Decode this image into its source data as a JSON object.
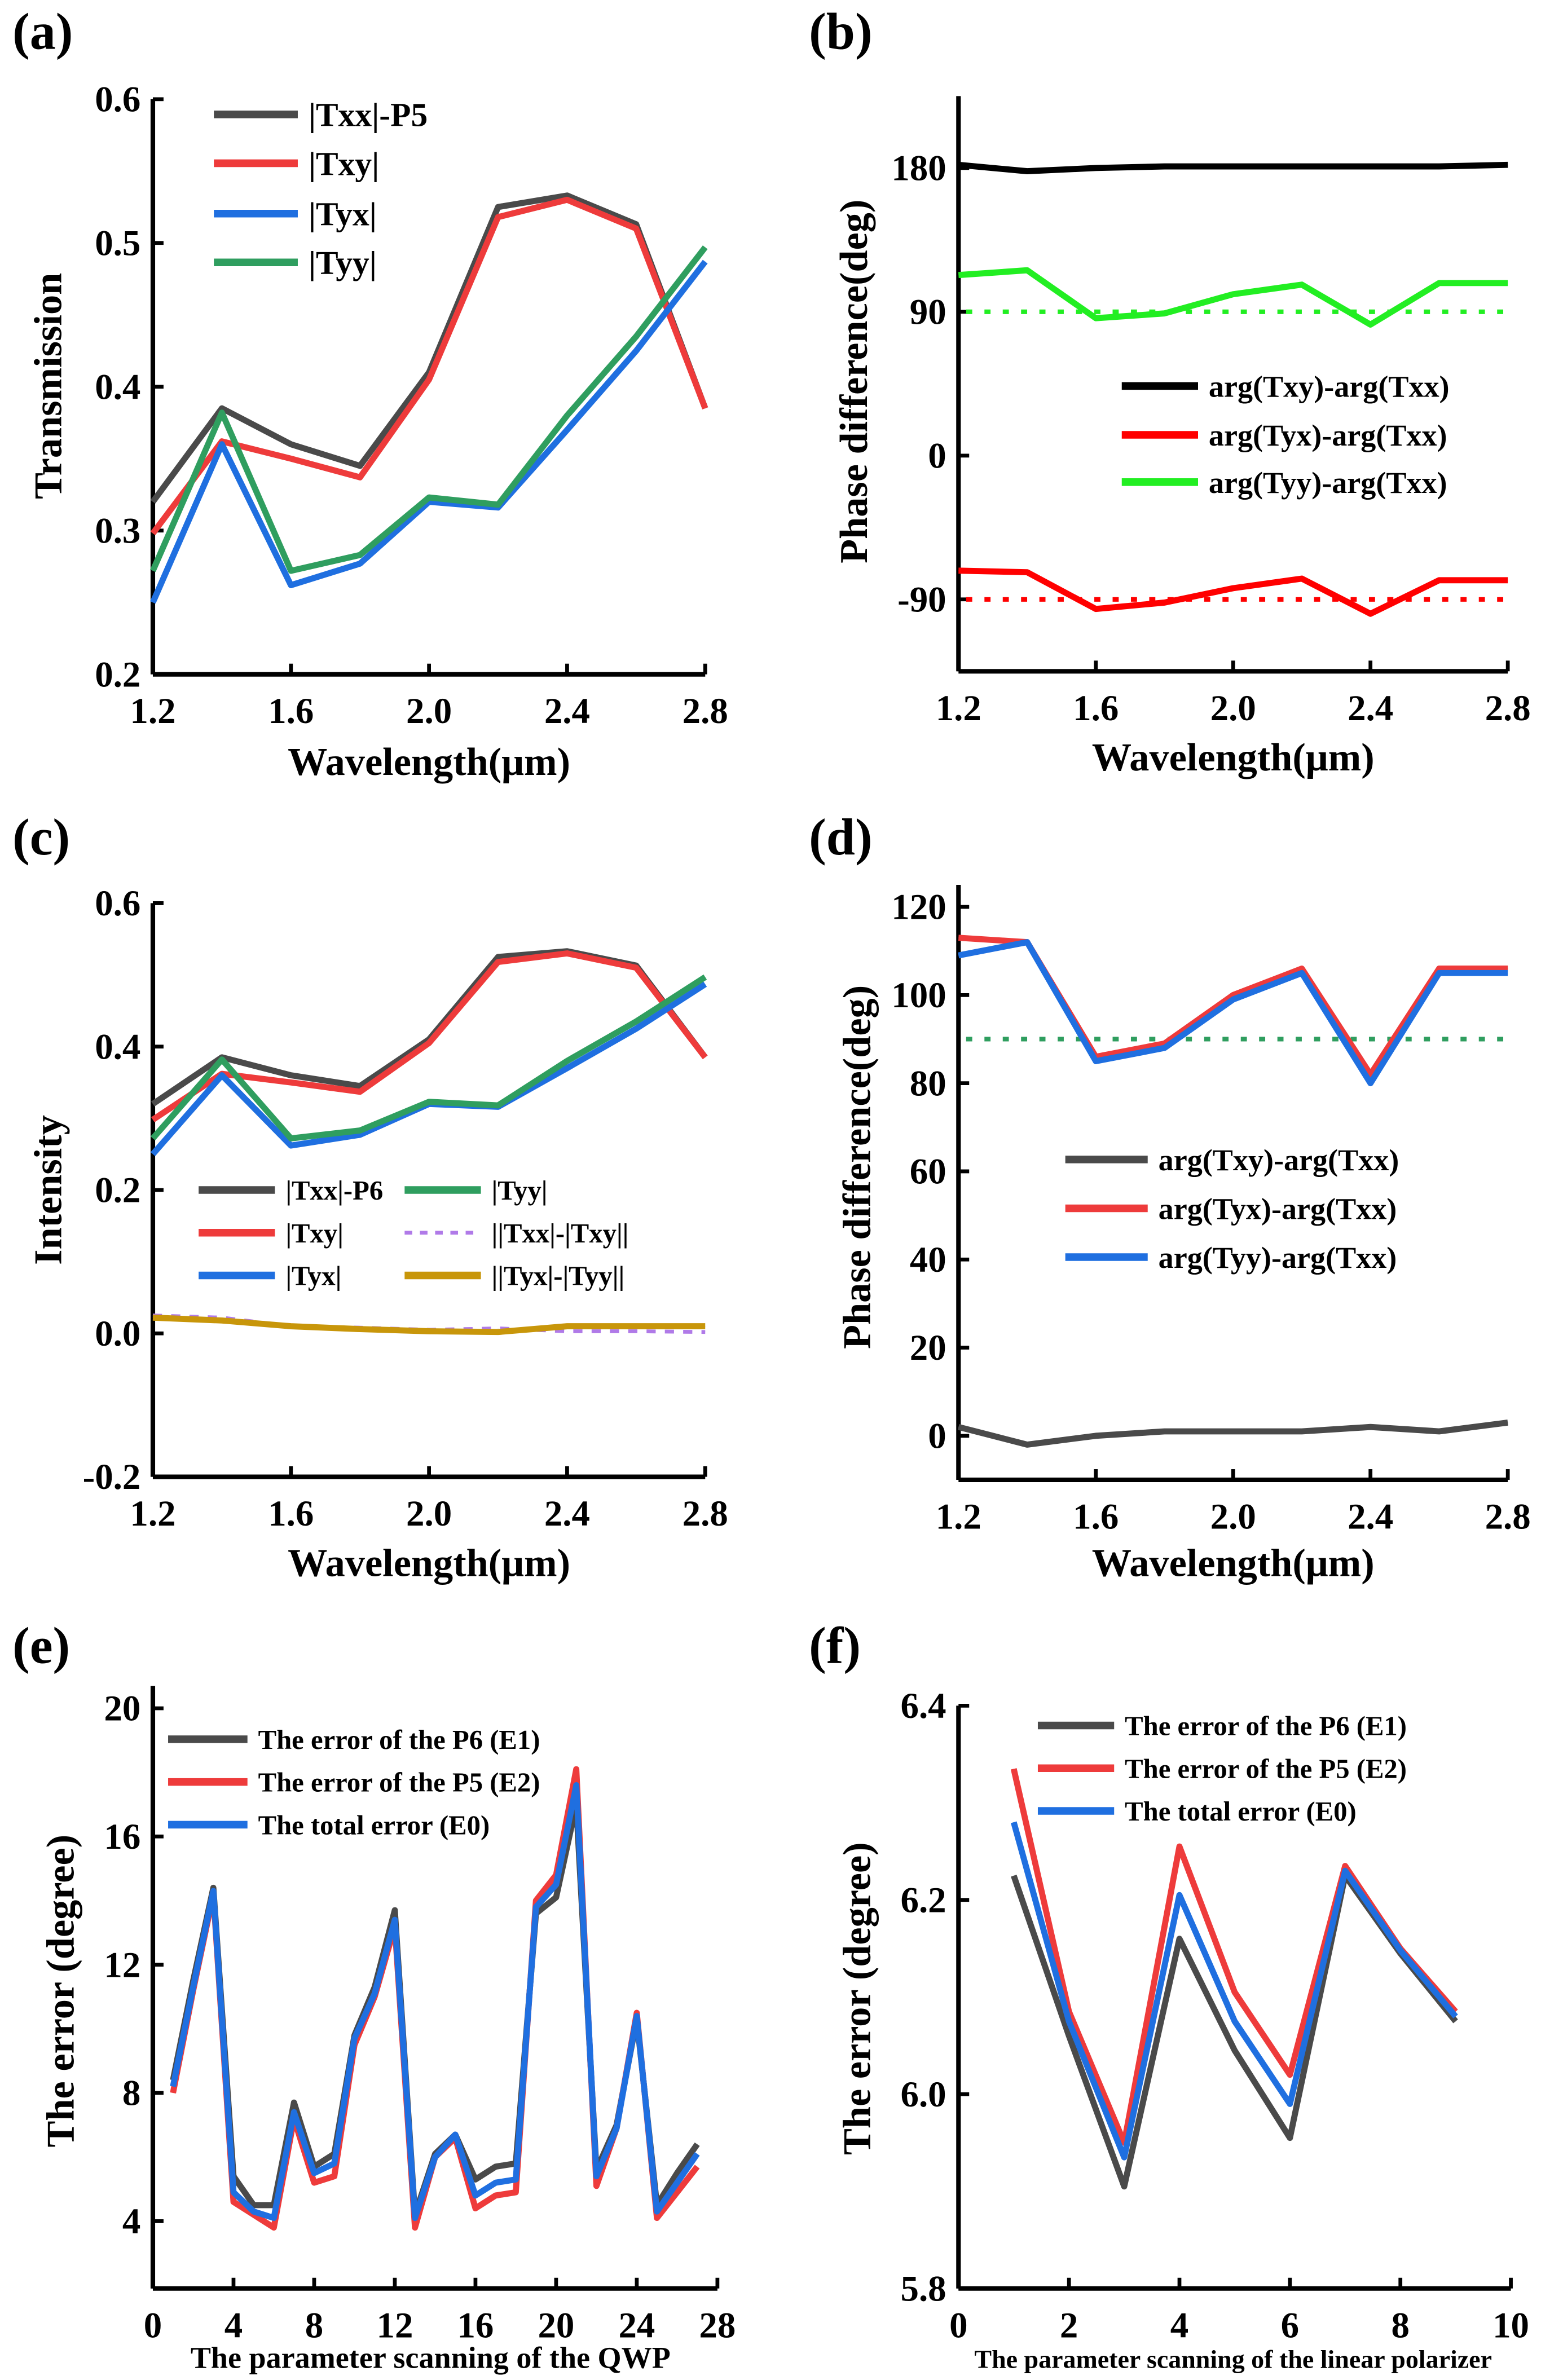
{
  "chart_data": [
    {
      "panel": "(a)",
      "type": "line",
      "xlabel": "Wavelength(μm)",
      "ylabel": "Transmission",
      "x": [
        1.2,
        1.4,
        1.6,
        1.8,
        2.0,
        2.2,
        2.4,
        2.6,
        2.8
      ],
      "xlim": [
        1.2,
        2.8
      ],
      "ylim": [
        0.2,
        0.6
      ],
      "xticks": [
        "1.2",
        "1.6",
        "2.0",
        "2.4",
        "2.8"
      ],
      "yticks": [
        "0.2",
        "0.3",
        "0.4",
        "0.5",
        "0.6"
      ],
      "legend_position": "top-left",
      "series": [
        {
          "name": "|Txx|-P5",
          "color": "#4a4a4a",
          "values": [
            0.32,
            0.385,
            0.36,
            0.345,
            0.41,
            0.525,
            0.533,
            0.513,
            0.385
          ]
        },
        {
          "name": "|Txy|",
          "color": "#ee3b3b",
          "values": [
            0.298,
            0.362,
            0.35,
            0.337,
            0.405,
            0.518,
            0.53,
            0.51,
            0.385
          ]
        },
        {
          "name": "|Tyx|",
          "color": "#1f6fe0",
          "values": [
            0.25,
            0.36,
            0.262,
            0.277,
            0.32,
            0.316,
            0.37,
            0.425,
            0.487
          ]
        },
        {
          "name": "|Tyy|",
          "color": "#2f9e5f",
          "values": [
            0.272,
            0.382,
            0.272,
            0.283,
            0.323,
            0.318,
            0.38,
            0.435,
            0.497
          ]
        }
      ]
    },
    {
      "panel": "(b)",
      "type": "line",
      "xlabel": "Wavelength(μm)",
      "ylabel": "Phase difference(deg)",
      "x": [
        1.2,
        1.4,
        1.6,
        1.8,
        2.0,
        2.2,
        2.4,
        2.6,
        2.8
      ],
      "xlim": [
        1.2,
        2.8
      ],
      "ylim": [
        -135,
        225
      ],
      "xticks": [
        "1.2",
        "1.6",
        "2.0",
        "2.4",
        "2.8"
      ],
      "yticks": [
        "-90",
        "0",
        "90",
        "180"
      ],
      "legend_position": "center-right",
      "series": [
        {
          "name": "arg(Txy)-arg(Txx)",
          "color": "#000000",
          "values": [
            182,
            178,
            180,
            181,
            181,
            181,
            181,
            181,
            182
          ]
        },
        {
          "name": "arg(Tyx)-arg(Txx)",
          "color": "#ff0000",
          "values": [
            -72,
            -73,
            -96,
            -92,
            -83,
            -77,
            -99,
            -78,
            -78
          ]
        },
        {
          "name": "arg(Tyy)-arg(Txx)",
          "color": "#22ee22",
          "values": [
            113,
            116,
            86,
            89,
            101,
            107,
            82,
            108,
            108
          ]
        }
      ],
      "reference_lines": [
        {
          "y": 90,
          "color": "#22ee22"
        },
        {
          "y": -90,
          "color": "#ff0000"
        }
      ]
    },
    {
      "panel": "(c)",
      "type": "line",
      "xlabel": "Wavelength(μm)",
      "ylabel": "Intensity",
      "x": [
        1.2,
        1.4,
        1.6,
        1.8,
        2.0,
        2.2,
        2.4,
        2.6,
        2.8
      ],
      "xlim": [
        1.2,
        2.8
      ],
      "ylim": [
        -0.2,
        0.6
      ],
      "xticks": [
        "1.2",
        "1.6",
        "2.0",
        "2.4",
        "2.8"
      ],
      "yticks": [
        "-0.2",
        "0.0",
        "0.2",
        "0.4",
        "0.6"
      ],
      "legend_position": "bottom-left, two columns",
      "series": [
        {
          "name": "|Txx|-P6",
          "color": "#4a4a4a",
          "values": [
            0.32,
            0.385,
            0.36,
            0.345,
            0.41,
            0.525,
            0.533,
            0.513,
            0.385
          ]
        },
        {
          "name": "|Txy|",
          "color": "#ee3b3b",
          "values": [
            0.298,
            0.362,
            0.35,
            0.337,
            0.405,
            0.518,
            0.53,
            0.51,
            0.385
          ]
        },
        {
          "name": "|Tyx|",
          "color": "#1f6fe0",
          "values": [
            0.25,
            0.36,
            0.262,
            0.277,
            0.32,
            0.316,
            0.37,
            0.425,
            0.487
          ]
        },
        {
          "name": "|Tyy|",
          "color": "#2f9e5f",
          "values": [
            0.272,
            0.382,
            0.272,
            0.283,
            0.323,
            0.318,
            0.38,
            0.435,
            0.497
          ]
        },
        {
          "name": "||Txx|-|Txy||",
          "color": "#b07ae8",
          "dashed": true,
          "values": [
            0.025,
            0.022,
            0.01,
            0.008,
            0.005,
            0.007,
            0.003,
            0.003,
            0.002
          ]
        },
        {
          "name": "||Tyx|-|Tyy||",
          "color": "#c8960a",
          "values": [
            0.022,
            0.018,
            0.01,
            0.006,
            0.003,
            0.002,
            0.01,
            0.01,
            0.01
          ]
        }
      ]
    },
    {
      "panel": "(d)",
      "type": "line",
      "xlabel": "Wavelength(μm)",
      "ylabel": "Phase difference(deg)",
      "x": [
        1.2,
        1.4,
        1.6,
        1.8,
        2.0,
        2.2,
        2.4,
        2.6,
        2.8
      ],
      "xlim": [
        1.2,
        2.8
      ],
      "ylim": [
        -10,
        125
      ],
      "xticks": [
        "1.2",
        "1.6",
        "2.0",
        "2.4",
        "2.8"
      ],
      "yticks": [
        "0",
        "20",
        "40",
        "60",
        "80",
        "100",
        "120"
      ],
      "legend_position": "center-right",
      "series": [
        {
          "name": "arg(Txy)-arg(Txx)",
          "color": "#4a4a4a",
          "values": [
            2,
            -2,
            0,
            1,
            1,
            1,
            2,
            1,
            3
          ]
        },
        {
          "name": "arg(Tyx)-arg(Txx)",
          "color": "#ee3b3b",
          "values": [
            113,
            112,
            86,
            89,
            100,
            106,
            82,
            106,
            106
          ]
        },
        {
          "name": "arg(Tyy)-arg(Txx)",
          "color": "#1f6fe0",
          "values": [
            109,
            112,
            85,
            88,
            99,
            105,
            80,
            105,
            105
          ]
        }
      ],
      "reference_lines": [
        {
          "y": 90,
          "color": "#2f9e5f"
        }
      ]
    },
    {
      "panel": "(e)",
      "type": "line",
      "xlabel": "The parameter scanning of the QWP",
      "ylabel": "The error (degree)",
      "x": [
        1,
        2,
        3,
        4,
        5,
        6,
        7,
        8,
        9,
        10,
        11,
        12,
        13,
        14,
        15,
        16,
        17,
        18,
        19,
        20,
        21,
        22,
        23,
        24,
        25,
        26,
        27
      ],
      "xlim": [
        0,
        28
      ],
      "ylim": [
        1.9,
        20.7
      ],
      "xticks": [
        "0",
        "4",
        "8",
        "12",
        "16",
        "20",
        "24",
        "28"
      ],
      "yticks": [
        "4",
        "8",
        "12",
        "16",
        "20"
      ],
      "legend_position": "top-left",
      "series": [
        {
          "name": "The error of the P6 (E1)",
          "color": "#4a4a4a",
          "values": [
            8.4,
            11.5,
            14.4,
            5.4,
            4.5,
            4.5,
            7.7,
            5.7,
            6.1,
            9.8,
            11.3,
            13.7,
            4.2,
            6.1,
            6.7,
            5.3,
            5.7,
            5.8,
            13.6,
            14.1,
            17.0,
            5.6,
            7.0,
            10.3,
            4.5,
            5.5,
            6.4
          ]
        },
        {
          "name": "The error of the P5 (E2)",
          "color": "#ee3b3b",
          "values": [
            8.0,
            11.2,
            14.2,
            4.6,
            4.2,
            3.8,
            7.2,
            5.2,
            5.4,
            9.5,
            11.0,
            13.2,
            3.8,
            6.0,
            6.6,
            4.4,
            4.8,
            4.9,
            14.0,
            14.8,
            18.1,
            5.1,
            6.9,
            10.5,
            4.1,
            4.9,
            5.7
          ]
        },
        {
          "name": "The total error (E0)",
          "color": "#1f6fe0",
          "values": [
            8.2,
            11.3,
            14.3,
            4.9,
            4.3,
            4.1,
            7.4,
            5.5,
            5.8,
            9.7,
            11.1,
            13.4,
            4.1,
            6.0,
            6.7,
            4.8,
            5.2,
            5.3,
            13.8,
            14.5,
            17.6,
            5.4,
            6.9,
            10.4,
            4.3,
            5.2,
            6.1
          ]
        }
      ]
    },
    {
      "panel": "(f)",
      "type": "line",
      "xlabel": "The parameter scanning of the linear polarizer",
      "ylabel": "The error (degree)",
      "x": [
        1,
        2,
        3,
        4,
        5,
        6,
        7,
        8,
        9
      ],
      "xlim": [
        0,
        10
      ],
      "ylim": [
        5.8,
        6.4
      ],
      "xticks": [
        "0",
        "2",
        "4",
        "6",
        "8",
        "10"
      ],
      "yticks": [
        "5.8",
        "6.0",
        "6.2",
        "6.4"
      ],
      "legend_position": "top-left",
      "series": [
        {
          "name": "The error of the P6 (E1)",
          "color": "#4a4a4a",
          "values": [
            6.225,
            6.06,
            5.905,
            6.16,
            6.045,
            5.955,
            6.225,
            6.145,
            6.075
          ]
        },
        {
          "name": "The error of the P5 (E2)",
          "color": "#ee3b3b",
          "values": [
            6.335,
            6.085,
            5.95,
            6.255,
            6.105,
            6.02,
            6.235,
            6.15,
            6.085
          ]
        },
        {
          "name": "The total error  (E0)",
          "color": "#1f6fe0",
          "values": [
            6.28,
            6.075,
            5.935,
            6.205,
            6.075,
            5.99,
            6.23,
            6.148,
            6.08
          ]
        }
      ]
    }
  ]
}
